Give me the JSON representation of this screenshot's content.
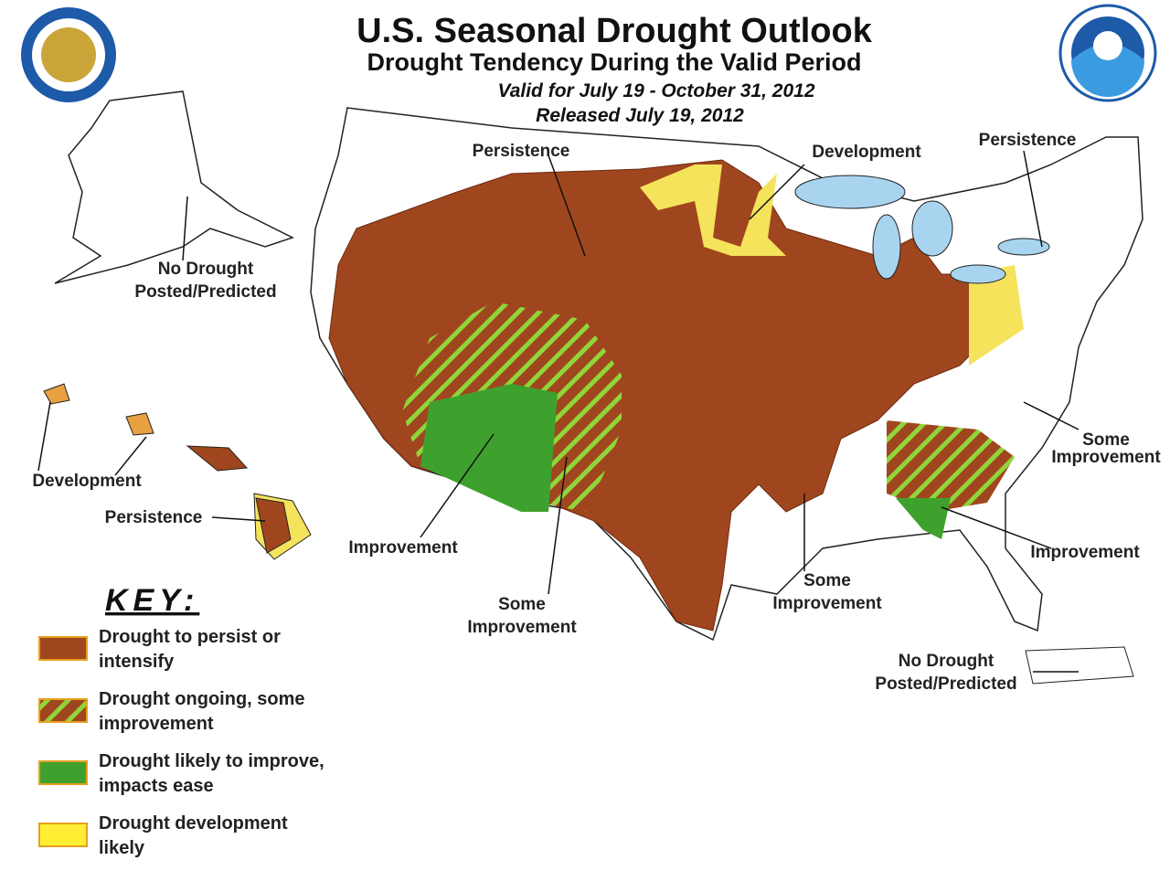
{
  "header": {
    "title": "U.S. Seasonal Drought Outlook",
    "subtitle": "Drought Tendency During the Valid Period",
    "valid": "Valid for July 19 - October 31, 2012",
    "released": "Released July 19, 2012"
  },
  "labels": [
    {
      "lines": [
        "Persistence"
      ]
    },
    {
      "lines": [
        "Development"
      ]
    },
    {
      "lines": [
        "Persistence"
      ]
    },
    {
      "lines": [
        "No Drought",
        "Posted/Predicted"
      ]
    },
    {
      "lines": [
        "Development"
      ]
    },
    {
      "lines": [
        "Persistence"
      ]
    },
    {
      "lines": [
        "Improvement"
      ]
    },
    {
      "lines": [
        "Some",
        "Improvement"
      ]
    },
    {
      "lines": [
        "Some",
        "Improvement"
      ]
    },
    {
      "lines": [
        "Improvement"
      ]
    },
    {
      "lines": [
        "Some",
        "Improvement"
      ]
    },
    {
      "lines": [
        "No Drought",
        "Posted/Predicted"
      ]
    }
  ],
  "key": {
    "title": "KEY:",
    "items": [
      {
        "lines": [
          "Drought to persist or",
          "intensify"
        ],
        "swatch": "persist"
      },
      {
        "lines": [
          "Drought ongoing, some",
          "improvement"
        ],
        "swatch": "some"
      },
      {
        "lines": [
          "Drought likely to improve,",
          "impacts ease"
        ],
        "swatch": "improve"
      },
      {
        "lines": [
          "Drought development",
          "likely"
        ],
        "swatch": "develop"
      }
    ]
  }
}
